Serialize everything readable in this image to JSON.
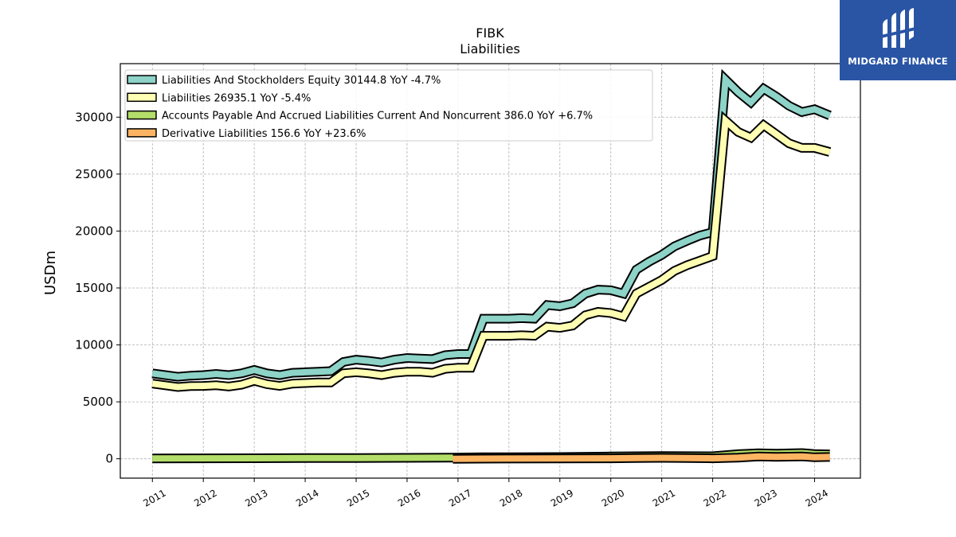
{
  "logo": {
    "text": "MIDGARD FINANCE",
    "color": "#2a55a5"
  },
  "chart_data": {
    "type": "line",
    "title": "FIBK",
    "subtitle": "Liabilities",
    "ylabel": "USDm",
    "xlabel": "",
    "ylim": [
      -1700,
      34700
    ],
    "xlim": [
      2010.37,
      2024.9
    ],
    "yticks": [
      0,
      5000,
      10000,
      15000,
      20000,
      25000,
      30000
    ],
    "xticks": [
      "2011",
      "2012",
      "2013",
      "2014",
      "2015",
      "2016",
      "2017",
      "2018",
      "2019",
      "2020",
      "2021",
      "2022",
      "2023",
      "2024"
    ],
    "grid": true,
    "legend_position": "top-left",
    "series": [
      {
        "name": "Liabilities And Stockholders Equity  30144.8 YoY -4.7%",
        "color": "#8dd3c7",
        "x": [
          2011.0,
          2011.25,
          2011.5,
          2011.75,
          2012.0,
          2012.25,
          2012.5,
          2012.75,
          2013.0,
          2013.25,
          2013.5,
          2013.75,
          2014.0,
          2014.25,
          2014.5,
          2014.75,
          2015.0,
          2015.25,
          2015.5,
          2015.75,
          2016.0,
          2016.25,
          2016.5,
          2016.75,
          2017.0,
          2017.25,
          2017.5,
          2017.75,
          2018.0,
          2018.25,
          2018.5,
          2018.75,
          2019.0,
          2019.25,
          2019.5,
          2019.75,
          2020.0,
          2020.25,
          2020.5,
          2020.75,
          2021.0,
          2021.25,
          2021.5,
          2021.75,
          2022.0,
          2022.25,
          2022.5,
          2022.75,
          2023.0,
          2023.25,
          2023.5,
          2023.75,
          2024.0,
          2024.3
        ],
        "values": [
          7500,
          7350,
          7200,
          7300,
          7350,
          7450,
          7350,
          7500,
          7800,
          7500,
          7350,
          7550,
          7600,
          7650,
          7700,
          8500,
          8700,
          8600,
          8450,
          8700,
          8850,
          8800,
          8750,
          9100,
          9200,
          9200,
          12300,
          12300,
          12300,
          12350,
          12300,
          13500,
          13400,
          13650,
          14500,
          14850,
          14800,
          14500,
          16600,
          17300,
          17900,
          18650,
          19150,
          19600,
          19900,
          33300,
          32200,
          31300,
          32500,
          31800,
          31000,
          30450,
          30700,
          30145
        ]
      },
      {
        "name": "Liabilities  26935.1 YoY -5.4%",
        "color": "#ffffb3",
        "x": [
          2011.0,
          2011.25,
          2011.5,
          2011.75,
          2012.0,
          2012.25,
          2012.5,
          2012.75,
          2013.0,
          2013.25,
          2013.5,
          2013.75,
          2014.0,
          2014.25,
          2014.5,
          2014.75,
          2015.0,
          2015.25,
          2015.5,
          2015.75,
          2016.0,
          2016.25,
          2016.5,
          2016.75,
          2017.0,
          2017.25,
          2017.5,
          2017.75,
          2018.0,
          2018.25,
          2018.5,
          2018.75,
          2019.0,
          2019.25,
          2019.5,
          2019.75,
          2020.0,
          2020.25,
          2020.5,
          2020.75,
          2021.0,
          2021.25,
          2021.5,
          2021.75,
          2022.0,
          2022.25,
          2022.5,
          2022.75,
          2023.0,
          2023.25,
          2023.5,
          2023.75,
          2024.0,
          2024.3
        ],
        "values": [
          6600,
          6450,
          6300,
          6380,
          6400,
          6450,
          6350,
          6500,
          6850,
          6550,
          6400,
          6600,
          6650,
          6700,
          6700,
          7500,
          7600,
          7500,
          7350,
          7550,
          7650,
          7650,
          7550,
          7900,
          8000,
          8000,
          10800,
          10800,
          10800,
          10850,
          10800,
          11600,
          11500,
          11700,
          12600,
          12900,
          12800,
          12500,
          14500,
          15100,
          15700,
          16500,
          17000,
          17400,
          17800,
          29700,
          28700,
          28200,
          29300,
          28500,
          27700,
          27300,
          27300,
          26935
        ]
      },
      {
        "name": "Accounts Payable And Accrued Liabilities Current And Noncurrent  386.0 YoY +6.7%",
        "color": "#b3de69",
        "x": [
          2011.0,
          2012.0,
          2013.0,
          2014.0,
          2015.0,
          2016.0,
          2016.9,
          2017.5,
          2018.0,
          2019.0,
          2020.0,
          2021.0,
          2022.0,
          2022.5,
          2022.9,
          2023.25,
          2023.75,
          2024.0,
          2024.3
        ],
        "values": [
          30,
          40,
          50,
          60,
          70,
          80,
          100,
          130,
          130,
          150,
          200,
          240,
          220,
          400,
          480,
          450,
          500,
          420,
          386
        ]
      },
      {
        "name": "Derivative Liabilities  156.6 YoY +23.6%",
        "color": "#fdb462",
        "x": [
          2016.9,
          2017.5,
          2018.0,
          2019.0,
          2020.0,
          2020.5,
          2021.0,
          2021.5,
          2022.0,
          2022.5,
          2022.9,
          2023.25,
          2023.75,
          2024.0,
          2024.3
        ],
        "values": [
          0,
          10,
          20,
          30,
          40,
          60,
          80,
          60,
          40,
          100,
          200,
          170,
          210,
          130,
          157
        ]
      }
    ]
  }
}
